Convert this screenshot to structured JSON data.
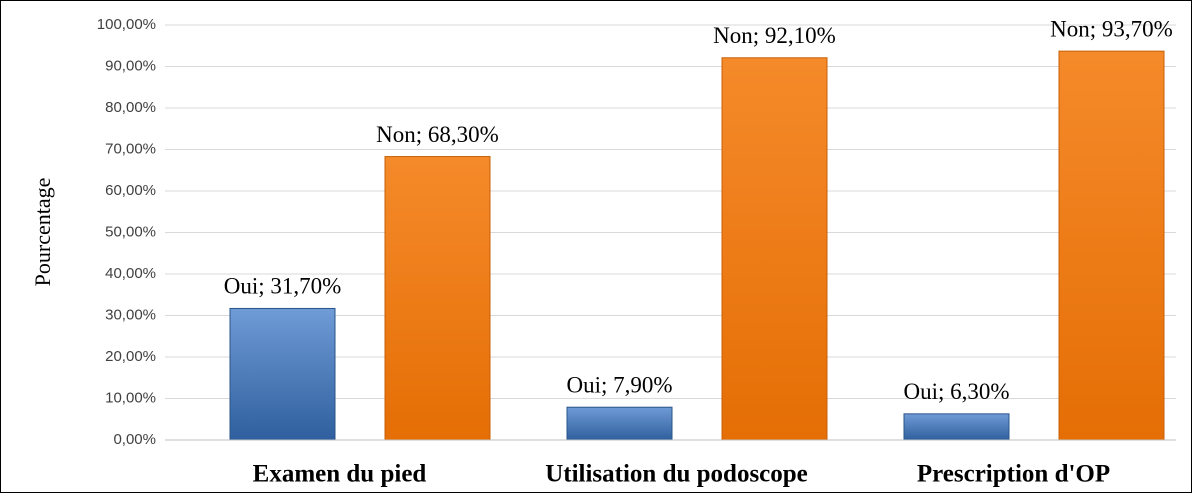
{
  "chart_data": {
    "type": "bar",
    "y_label": "Pourcentage",
    "categories": [
      "Examen du pied",
      "Utilisation du podoscope",
      "Prescription d'OP"
    ],
    "series": [
      {
        "color": "#4a7ebb",
        "values": [
          31.7,
          7.9,
          6.3
        ],
        "value_labels": [
          "Oui; 31,70%",
          "Oui; 7,90%",
          "Oui; 6,30%"
        ]
      },
      {
        "color": "#f07a12",
        "values": [
          68.3,
          92.1,
          93.7
        ],
        "value_labels": [
          "Non; 68,30%",
          "Non; 92,10%",
          "Non; 93,70%"
        ]
      }
    ],
    "ylim": [
      0,
      100
    ],
    "yticks": [
      {
        "value": 0,
        "label": "0,00%"
      },
      {
        "value": 10,
        "label": "10,00%"
      },
      {
        "value": 20,
        "label": "20,00%"
      },
      {
        "value": 30,
        "label": "30,00%"
      },
      {
        "value": 40,
        "label": "40,00%"
      },
      {
        "value": 50,
        "label": "50,00%"
      },
      {
        "value": 60,
        "label": "60,00%"
      },
      {
        "value": 70,
        "label": "70,00%"
      },
      {
        "value": 80,
        "label": "80,00%"
      },
      {
        "value": 90,
        "label": "90,00%"
      },
      {
        "value": 100,
        "label": "100,00%"
      }
    ],
    "grid": true
  }
}
